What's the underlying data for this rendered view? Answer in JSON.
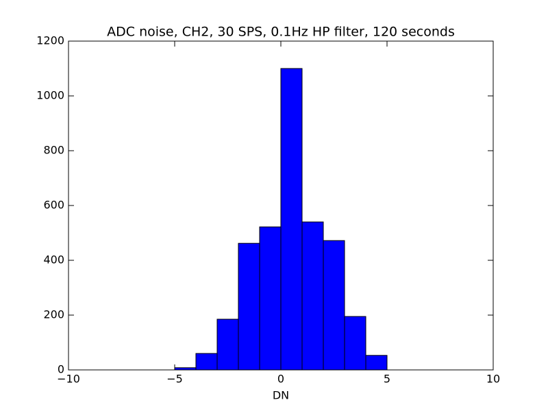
{
  "chart_data": {
    "type": "histogram",
    "title": "ADC noise, CH2, 30 SPS, 0.1Hz HP filter, 120 seconds",
    "x_label": "DN",
    "bins": [
      -5,
      -4,
      -3,
      -2,
      -1,
      0,
      1,
      2,
      3,
      4,
      5
    ],
    "values": [
      8,
      60,
      185,
      462,
      522,
      1100,
      540,
      472,
      195,
      53
    ],
    "color": "#0000ff",
    "xlim": [
      -10,
      10
    ],
    "xticks": [
      {
        "value": -10,
        "label": "−10"
      },
      {
        "value": -5,
        "label": "−5"
      },
      0,
      5,
      10
    ],
    "ylim": [
      0,
      1200
    ],
    "yticks": [
      0,
      200,
      400,
      600,
      800,
      1000,
      1200
    ]
  }
}
